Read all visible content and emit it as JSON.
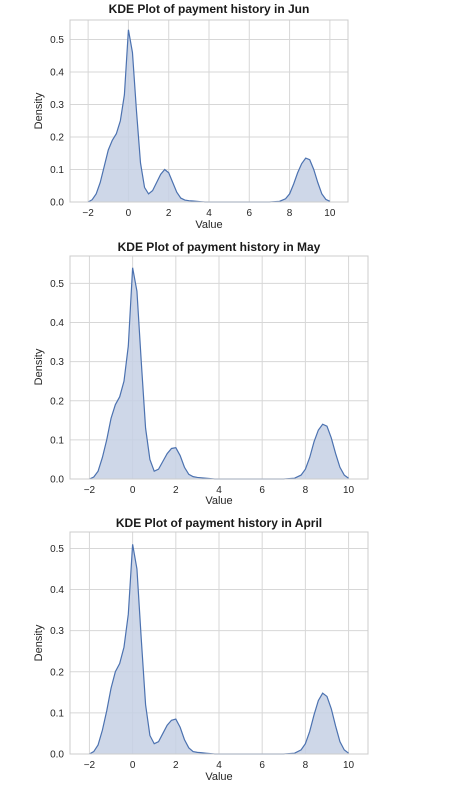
{
  "chart_data": [
    {
      "type": "area",
      "title": "KDE Plot of payment history  in Jun",
      "xlabel": "Value",
      "ylabel": "Density",
      "xlim": [
        -2.9,
        10.9
      ],
      "ylim": [
        0,
        0.56
      ],
      "xticks": [
        -2,
        0,
        2,
        4,
        6,
        8,
        10
      ],
      "yticks": [
        0.0,
        0.1,
        0.2,
        0.3,
        0.4,
        0.5
      ],
      "grid": true,
      "color": "#4c72b0",
      "fill_color": "#c6d0e4",
      "series": [
        {
          "x": [
            -2,
            -1.8,
            -1.6,
            -1.4,
            -1.2,
            -1.0,
            -0.8,
            -0.6,
            -0.4,
            -0.2,
            0.0,
            0.2,
            0.4,
            0.6,
            0.8,
            1.0,
            1.2,
            1.4,
            1.6,
            1.8,
            2.0,
            2.2,
            2.4,
            2.6,
            2.8,
            3.0,
            3.2,
            3.4,
            3.6,
            3.8,
            4.0,
            4.5,
            5.0,
            5.5,
            6.0,
            6.5,
            7.0,
            7.5,
            7.8,
            8.0,
            8.2,
            8.4,
            8.6,
            8.8,
            9.0,
            9.2,
            9.4,
            9.6,
            9.8,
            10.0
          ],
          "y": [
            0.0,
            0.007,
            0.025,
            0.06,
            0.11,
            0.16,
            0.19,
            0.21,
            0.25,
            0.33,
            0.53,
            0.46,
            0.28,
            0.12,
            0.045,
            0.025,
            0.035,
            0.06,
            0.085,
            0.1,
            0.09,
            0.06,
            0.03,
            0.012,
            0.006,
            0.004,
            0.003,
            0.002,
            0.001,
            0.0,
            0.0,
            0.0,
            0.0,
            0.0,
            0.0,
            0.0,
            0.0,
            0.002,
            0.01,
            0.025,
            0.055,
            0.09,
            0.118,
            0.135,
            0.13,
            0.1,
            0.06,
            0.025,
            0.008,
            0.002
          ]
        }
      ]
    },
    {
      "type": "area",
      "title": "KDE Plot of payment history  in May",
      "xlabel": "Value",
      "ylabel": "Density",
      "xlim": [
        -2.9,
        10.9
      ],
      "ylim": [
        0,
        0.57
      ],
      "xticks": [
        -2,
        0,
        2,
        4,
        6,
        8,
        10
      ],
      "yticks": [
        0.0,
        0.1,
        0.2,
        0.3,
        0.4,
        0.5
      ],
      "grid": true,
      "color": "#4c72b0",
      "fill_color": "#c6d0e4",
      "series": [
        {
          "x": [
            -2,
            -1.8,
            -1.6,
            -1.4,
            -1.2,
            -1.0,
            -0.8,
            -0.6,
            -0.4,
            -0.2,
            0.0,
            0.2,
            0.4,
            0.6,
            0.8,
            1.0,
            1.2,
            1.4,
            1.6,
            1.8,
            2.0,
            2.2,
            2.4,
            2.6,
            2.8,
            3.0,
            3.2,
            3.4,
            3.6,
            3.8,
            4.0,
            4.5,
            5.0,
            5.5,
            6.0,
            6.5,
            7.0,
            7.5,
            7.8,
            8.0,
            8.2,
            8.4,
            8.6,
            8.8,
            9.0,
            9.2,
            9.4,
            9.6,
            9.8,
            10.0
          ],
          "y": [
            0.0,
            0.005,
            0.02,
            0.055,
            0.1,
            0.155,
            0.19,
            0.21,
            0.25,
            0.34,
            0.54,
            0.48,
            0.3,
            0.13,
            0.05,
            0.02,
            0.025,
            0.045,
            0.065,
            0.078,
            0.08,
            0.06,
            0.03,
            0.012,
            0.006,
            0.004,
            0.003,
            0.002,
            0.001,
            0.0,
            0.0,
            0.0,
            0.0,
            0.0,
            0.0,
            0.0,
            0.0,
            0.002,
            0.01,
            0.025,
            0.055,
            0.095,
            0.125,
            0.14,
            0.135,
            0.105,
            0.065,
            0.03,
            0.01,
            0.002
          ]
        }
      ]
    },
    {
      "type": "area",
      "title": "KDE Plot of payment history  in April",
      "xlabel": "Value",
      "ylabel": "Density",
      "xlim": [
        -2.9,
        10.9
      ],
      "ylim": [
        0,
        0.54
      ],
      "xticks": [
        -2,
        0,
        2,
        4,
        6,
        8,
        10
      ],
      "yticks": [
        0.0,
        0.1,
        0.2,
        0.3,
        0.4,
        0.5
      ],
      "grid": true,
      "color": "#4c72b0",
      "fill_color": "#c6d0e4",
      "series": [
        {
          "x": [
            -2,
            -1.8,
            -1.6,
            -1.4,
            -1.2,
            -1.0,
            -0.8,
            -0.6,
            -0.4,
            -0.2,
            0.0,
            0.2,
            0.4,
            0.6,
            0.8,
            1.0,
            1.2,
            1.4,
            1.6,
            1.8,
            2.0,
            2.2,
            2.4,
            2.6,
            2.8,
            3.0,
            3.2,
            3.4,
            3.6,
            3.8,
            4.0,
            4.5,
            5.0,
            5.5,
            6.0,
            6.5,
            7.0,
            7.5,
            7.8,
            8.0,
            8.2,
            8.4,
            8.6,
            8.8,
            9.0,
            9.2,
            9.4,
            9.6,
            9.8,
            10.0
          ],
          "y": [
            0.0,
            0.006,
            0.022,
            0.058,
            0.105,
            0.16,
            0.2,
            0.22,
            0.26,
            0.34,
            0.51,
            0.45,
            0.28,
            0.12,
            0.045,
            0.025,
            0.03,
            0.05,
            0.07,
            0.082,
            0.085,
            0.065,
            0.035,
            0.015,
            0.006,
            0.004,
            0.003,
            0.002,
            0.001,
            0.0,
            0.0,
            0.0,
            0.0,
            0.0,
            0.0,
            0.0,
            0.0,
            0.002,
            0.01,
            0.025,
            0.055,
            0.095,
            0.13,
            0.148,
            0.14,
            0.11,
            0.068,
            0.03,
            0.01,
            0.002
          ]
        }
      ]
    }
  ]
}
